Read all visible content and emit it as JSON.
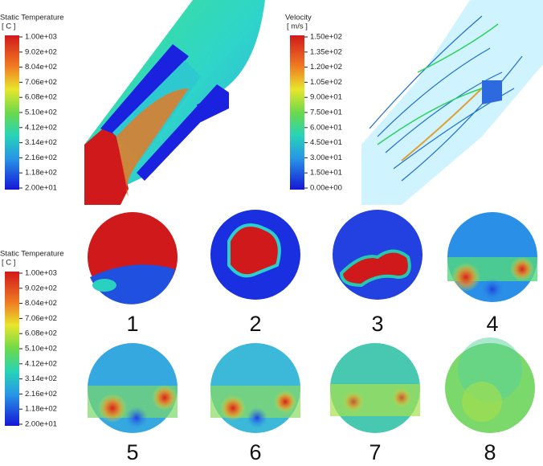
{
  "colorbars": [
    {
      "title": "Static Temperature",
      "unit": "[ C ]",
      "ticks": [
        "1.00e+03",
        "9.02e+02",
        "8.04e+02",
        "7.06e+02",
        "6.08e+02",
        "5.10e+02",
        "4.12e+02",
        "3.14e+02",
        "2.16e+02",
        "1.18e+02",
        "2.00e+01"
      ]
    },
    {
      "title": "Velocity",
      "unit": "[ m/s ]",
      "ticks": [
        "1.50e+02",
        "1.35e+02",
        "1.20e+02",
        "1.05e+02",
        "9.00e+01",
        "7.50e+01",
        "6.00e+01",
        "4.50e+01",
        "3.00e+01",
        "1.50e+01",
        "0.00e+00"
      ]
    },
    {
      "title": "Static Temperature",
      "unit": "[ C ]",
      "ticks": [
        "1.00e+03",
        "9.02e+02",
        "8.04e+02",
        "7.06e+02",
        "6.08e+02",
        "5.10e+02",
        "4.12e+02",
        "3.14e+02",
        "2.16e+02",
        "1.18e+02",
        "2.00e+01"
      ]
    }
  ],
  "panels": [
    "1",
    "2",
    "3",
    "4",
    "5",
    "6",
    "7",
    "8"
  ]
}
